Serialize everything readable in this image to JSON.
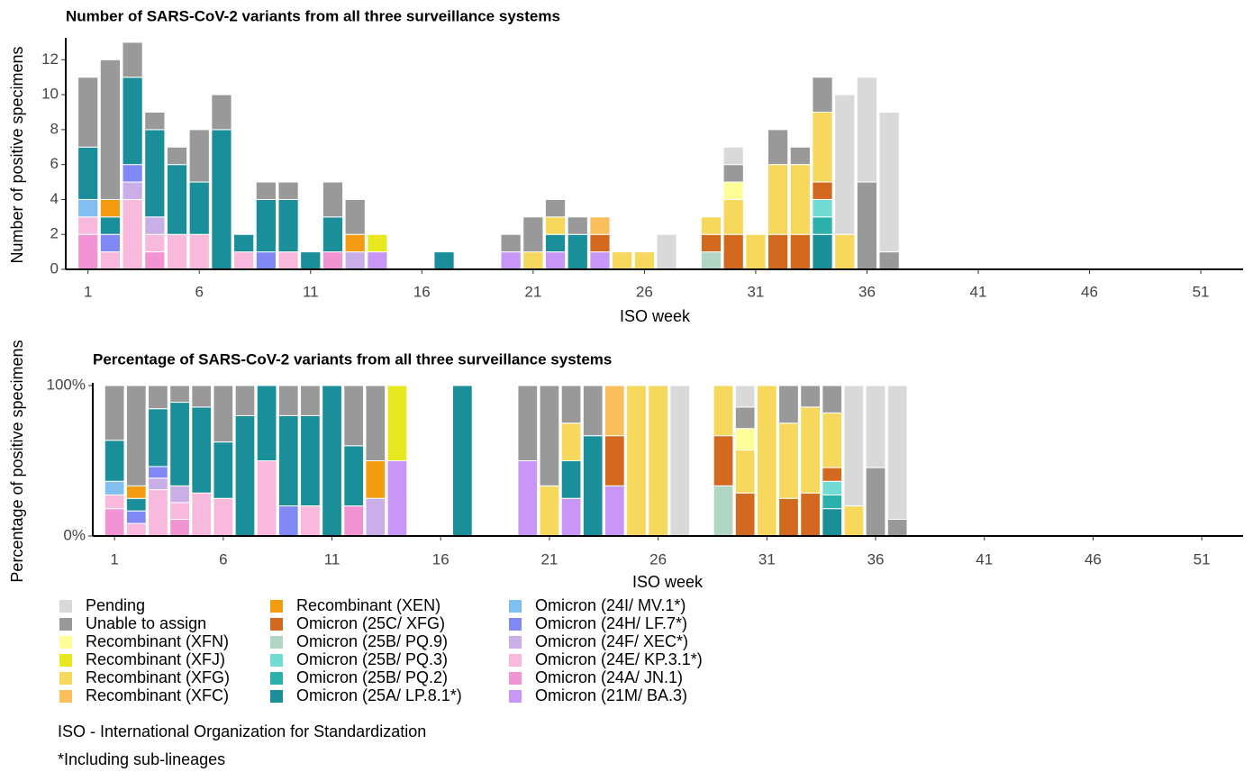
{
  "chart_data": [
    {
      "type": "bar",
      "stacking": "count",
      "title": "Number of SARS-CoV-2 variants from all three surveillance systems",
      "x_label": "ISO week",
      "y_label": "Number of positive specimens",
      "x": [
        1,
        2,
        3,
        4,
        5,
        6,
        7,
        8,
        9,
        10,
        11,
        12,
        13,
        14,
        15,
        16,
        17,
        18,
        19,
        20,
        21,
        22,
        23,
        24,
        25,
        26,
        27,
        28,
        29,
        30,
        31,
        32,
        33,
        34,
        35,
        36,
        37
      ],
      "xlim": [
        0,
        52.9
      ],
      "xticks": [
        1,
        6,
        11,
        16,
        21,
        26,
        31,
        36,
        41,
        46,
        51
      ],
      "ylim": [
        0,
        13.1
      ],
      "yticks": [
        0,
        2,
        4,
        6,
        8,
        10,
        12
      ],
      "series": [
        {
          "name": "Pending",
          "color": "#d9d9d9",
          "values": [
            0,
            0,
            0,
            0,
            0,
            0,
            0,
            0,
            0,
            0,
            0,
            0,
            0,
            0,
            0,
            0,
            0,
            0,
            0,
            0,
            0,
            0,
            0,
            0,
            0,
            0,
            2,
            0,
            0,
            1,
            0,
            0,
            0,
            0,
            8,
            6,
            8
          ]
        },
        {
          "name": "Unable to assign",
          "color": "#999999",
          "values": [
            4,
            8,
            2,
            1,
            1,
            3,
            2,
            0,
            1,
            1,
            0,
            2,
            2,
            0,
            0,
            0,
            0,
            0,
            0,
            1,
            2,
            1,
            1,
            0,
            0,
            0,
            0,
            0,
            0,
            1,
            0,
            2,
            1,
            2,
            0,
            5,
            1
          ]
        },
        {
          "name": "Recombinant (XFN)",
          "color": "#ffff99",
          "values": [
            0,
            0,
            0,
            0,
            0,
            0,
            0,
            0,
            0,
            0,
            0,
            0,
            0,
            0,
            0,
            0,
            0,
            0,
            0,
            0,
            0,
            0,
            0,
            0,
            0,
            0,
            0,
            0,
            0,
            1,
            0,
            0,
            0,
            0,
            0,
            0,
            0
          ]
        },
        {
          "name": "Recombinant (XFJ)",
          "color": "#e8e820",
          "values": [
            0,
            0,
            0,
            0,
            0,
            0,
            0,
            0,
            0,
            0,
            0,
            0,
            0,
            1,
            0,
            0,
            0,
            0,
            0,
            0,
            0,
            0,
            0,
            0,
            0,
            0,
            0,
            0,
            0,
            0,
            0,
            0,
            0,
            0,
            0,
            0,
            0
          ]
        },
        {
          "name": "Recombinant (XFG)",
          "color": "#f5d85c",
          "values": [
            0,
            0,
            0,
            0,
            0,
            0,
            0,
            0,
            0,
            0,
            0,
            0,
            0,
            0,
            0,
            0,
            0,
            0,
            0,
            0,
            1,
            1,
            0,
            0,
            1,
            1,
            0,
            0,
            1,
            2,
            2,
            4,
            4,
            4,
            2,
            0,
            0
          ]
        },
        {
          "name": "Recombinant (XFC)",
          "color": "#fbbf5c",
          "values": [
            0,
            0,
            0,
            0,
            0,
            0,
            0,
            0,
            0,
            0,
            0,
            0,
            0,
            0,
            0,
            0,
            0,
            0,
            0,
            0,
            0,
            0,
            0,
            1,
            0,
            0,
            0,
            0,
            0,
            0,
            0,
            0,
            0,
            0,
            0,
            0,
            0
          ]
        },
        {
          "name": "Recombinant (XEN)",
          "color": "#f39c12",
          "values": [
            0,
            1,
            0,
            0,
            0,
            0,
            0,
            0,
            0,
            0,
            0,
            0,
            1,
            0,
            0,
            0,
            0,
            0,
            0,
            0,
            0,
            0,
            0,
            0,
            0,
            0,
            0,
            0,
            0,
            0,
            0,
            0,
            0,
            0,
            0,
            0,
            0
          ]
        },
        {
          "name": "Omicron (25C/ XFG)",
          "color": "#d2691e",
          "values": [
            0,
            0,
            0,
            0,
            0,
            0,
            0,
            0,
            0,
            0,
            0,
            0,
            0,
            0,
            0,
            0,
            0,
            0,
            0,
            0,
            0,
            0,
            0,
            1,
            0,
            0,
            0,
            0,
            1,
            2,
            0,
            2,
            2,
            1,
            0,
            0,
            0
          ]
        },
        {
          "name": "Omicron (25B/ PQ.9)",
          "color": "#b2d6c4",
          "values": [
            0,
            0,
            0,
            0,
            0,
            0,
            0,
            0,
            0,
            0,
            0,
            0,
            0,
            0,
            0,
            0,
            0,
            0,
            0,
            0,
            0,
            0,
            0,
            0,
            0,
            0,
            0,
            0,
            1,
            0,
            0,
            0,
            0,
            0,
            0,
            0,
            0
          ]
        },
        {
          "name": "Omicron (25B/ PQ.3)",
          "color": "#70dcd4",
          "values": [
            0,
            0,
            0,
            0,
            0,
            0,
            0,
            0,
            0,
            0,
            0,
            0,
            0,
            0,
            0,
            0,
            0,
            0,
            0,
            0,
            0,
            0,
            0,
            0,
            0,
            0,
            0,
            0,
            0,
            0,
            0,
            0,
            0,
            1,
            0,
            0,
            0
          ]
        },
        {
          "name": "Omicron (25B/ PQ.2)",
          "color": "#2bb0ac",
          "values": [
            0,
            0,
            0,
            0,
            0,
            0,
            0,
            0,
            0,
            0,
            0,
            0,
            0,
            0,
            0,
            0,
            0,
            0,
            0,
            0,
            0,
            0,
            0,
            0,
            0,
            0,
            0,
            0,
            0,
            0,
            0,
            0,
            0,
            1,
            0,
            0,
            0
          ]
        },
        {
          "name": "Omicron (25A/ LP.8.1*)",
          "color": "#1a8f9a",
          "values": [
            3,
            1,
            5,
            5,
            4,
            3,
            8,
            1,
            3,
            3,
            1,
            2,
            0,
            0,
            0,
            0,
            1,
            0,
            0,
            0,
            0,
            1,
            2,
            0,
            0,
            0,
            0,
            0,
            0,
            0,
            0,
            0,
            0,
            2,
            0,
            0,
            0
          ]
        },
        {
          "name": "Omicron (24I/ MV.1*)",
          "color": "#80bff0",
          "values": [
            1,
            0,
            0,
            0,
            0,
            0,
            0,
            0,
            0,
            0,
            0,
            0,
            0,
            0,
            0,
            0,
            0,
            0,
            0,
            0,
            0,
            0,
            0,
            0,
            0,
            0,
            0,
            0,
            0,
            0,
            0,
            0,
            0,
            0,
            0,
            0,
            0
          ]
        },
        {
          "name": "Omicron (24H/ LF.7*)",
          "color": "#8088f4",
          "values": [
            0,
            1,
            1,
            0,
            0,
            0,
            0,
            0,
            1,
            0,
            0,
            0,
            0,
            0,
            0,
            0,
            0,
            0,
            0,
            0,
            0,
            0,
            0,
            0,
            0,
            0,
            0,
            0,
            0,
            0,
            0,
            0,
            0,
            0,
            0,
            0,
            0
          ]
        },
        {
          "name": "Omicron (24F/ XEC*)",
          "color": "#c9aee8",
          "values": [
            0,
            0,
            1,
            1,
            0,
            0,
            0,
            0,
            0,
            0,
            0,
            0,
            1,
            0,
            0,
            0,
            0,
            0,
            0,
            0,
            0,
            0,
            0,
            0,
            0,
            0,
            0,
            0,
            0,
            0,
            0,
            0,
            0,
            0,
            0,
            0,
            0
          ]
        },
        {
          "name": "Omicron (24E/ KP.3.1*)",
          "color": "#f9b9dc",
          "values": [
            1,
            1,
            4,
            1,
            2,
            2,
            0,
            1,
            0,
            1,
            0,
            0,
            0,
            0,
            0,
            0,
            0,
            0,
            0,
            0,
            0,
            0,
            0,
            0,
            0,
            0,
            0,
            0,
            0,
            0,
            0,
            0,
            0,
            0,
            0,
            0,
            0
          ]
        },
        {
          "name": "Omicron (24A/ JN.1)",
          "color": "#f294d4",
          "values": [
            2,
            0,
            0,
            1,
            0,
            0,
            0,
            0,
            0,
            0,
            0,
            1,
            0,
            0,
            0,
            0,
            0,
            0,
            0,
            0,
            0,
            0,
            0,
            0,
            0,
            0,
            0,
            0,
            0,
            0,
            0,
            0,
            0,
            0,
            0,
            0,
            0
          ]
        },
        {
          "name": "Omicron (21M/ BA.3)",
          "color": "#c896f4",
          "values": [
            0,
            0,
            0,
            0,
            0,
            0,
            0,
            0,
            0,
            0,
            0,
            0,
            0,
            1,
            0,
            0,
            0,
            0,
            0,
            1,
            0,
            1,
            0,
            1,
            0,
            0,
            0,
            0,
            0,
            0,
            0,
            0,
            0,
            0,
            0,
            0,
            0
          ]
        }
      ]
    },
    {
      "type": "bar",
      "stacking": "percent",
      "title": "Percentage of SARS-CoV-2 variants from all three surveillance systems",
      "x_label": "ISO week",
      "y_label": "Percentage of positive specimens",
      "xlim": [
        0,
        52.9
      ],
      "xticks": [
        1,
        6,
        11,
        16,
        21,
        26,
        31,
        36,
        41,
        46,
        51
      ],
      "ylim": [
        0,
        100
      ],
      "yticks": [
        {
          "value": 0,
          "label": "0%"
        },
        {
          "value": 100,
          "label": "100%"
        }
      ]
    }
  ],
  "footnotes": [
    "ISO - International Organization for Standardization",
    "*Including sub-lineages"
  ]
}
